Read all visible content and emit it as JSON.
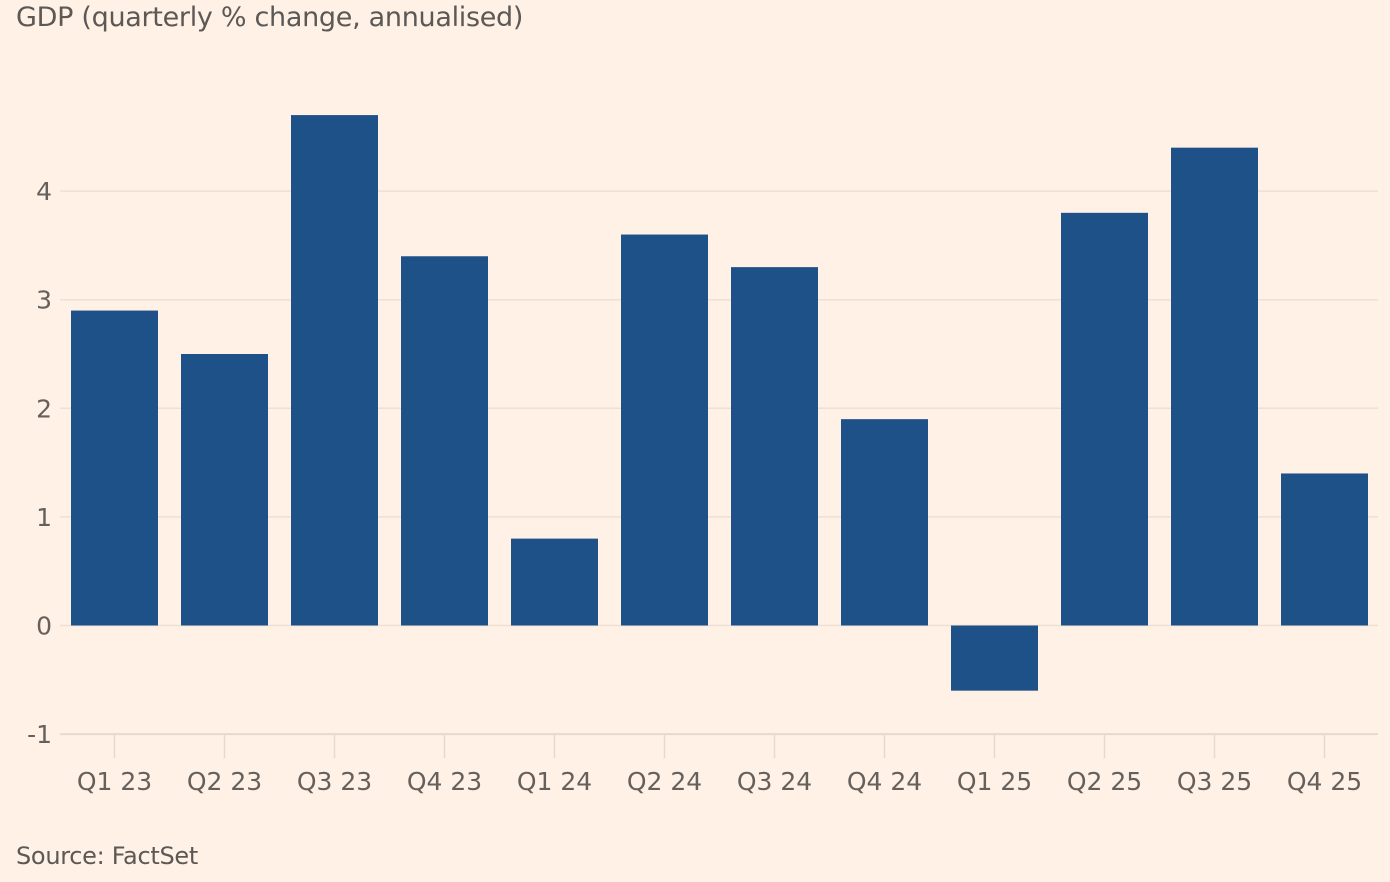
{
  "chart_data": {
    "type": "bar",
    "title": "GDP (quarterly % change, annualised)",
    "source": "Source: FactSet",
    "xlabel": "",
    "ylabel": "",
    "categories": [
      "Q1 23",
      "Q2 23",
      "Q3 23",
      "Q4 23",
      "Q1 24",
      "Q2 24",
      "Q3 24",
      "Q4 24",
      "Q1 25",
      "Q2 25",
      "Q3 25",
      "Q4 25"
    ],
    "values": [
      2.9,
      2.5,
      4.7,
      3.4,
      0.8,
      3.6,
      3.3,
      1.9,
      -0.6,
      3.8,
      4.4,
      1.4
    ],
    "ylim": [
      -1,
      4.9
    ],
    "yticks": [
      -1,
      0,
      1,
      2,
      3,
      4
    ],
    "grid": true,
    "legend": "none",
    "colors": {
      "bar": "#1f5189",
      "background": "#fff1e5",
      "grid": "#ede0d4",
      "text": "#66605c"
    }
  }
}
